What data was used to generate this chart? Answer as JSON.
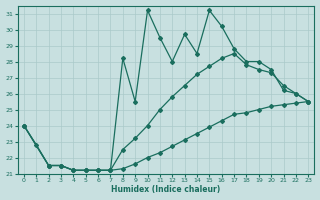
{
  "xlabel": "Humidex (Indice chaleur)",
  "xlim": [
    -0.5,
    23.5
  ],
  "ylim": [
    21,
    31.5
  ],
  "yticks": [
    21,
    22,
    23,
    24,
    25,
    26,
    27,
    28,
    29,
    30,
    31
  ],
  "xticks": [
    0,
    1,
    2,
    3,
    4,
    5,
    6,
    7,
    8,
    9,
    10,
    11,
    12,
    13,
    14,
    15,
    16,
    17,
    18,
    19,
    20,
    21,
    22,
    23
  ],
  "background_color": "#c8e0e0",
  "grid_color": "#aacaca",
  "line_color": "#1a6e5e",
  "line1_x": [
    0,
    1,
    2,
    3,
    4,
    5,
    6,
    7,
    8,
    9,
    10,
    11,
    12,
    13,
    14,
    15,
    16,
    17,
    18,
    19,
    20,
    21,
    22,
    23
  ],
  "line1_y": [
    24,
    22.8,
    21.5,
    21.5,
    21.2,
    21.2,
    21.2,
    21.2,
    28.2,
    25.5,
    31.2,
    29.5,
    28.0,
    29.7,
    28.5,
    31.2,
    30.2,
    28.8,
    28.0,
    28.0,
    27.5,
    26.2,
    26.0,
    25.5
  ],
  "line2_x": [
    0,
    2,
    3,
    4,
    5,
    6,
    7,
    8,
    9,
    10,
    11,
    12,
    13,
    14,
    15,
    16,
    17,
    18,
    19,
    20,
    21,
    22,
    23
  ],
  "line2_y": [
    24,
    21.5,
    21.5,
    21.2,
    21.2,
    21.2,
    21.2,
    22.5,
    23.2,
    24.0,
    25.0,
    25.8,
    26.5,
    27.2,
    27.7,
    28.2,
    28.5,
    27.8,
    27.5,
    27.3,
    26.5,
    26.0,
    25.5
  ],
  "line3_x": [
    0,
    2,
    3,
    4,
    5,
    6,
    7,
    8,
    9,
    10,
    11,
    12,
    13,
    14,
    15,
    16,
    17,
    18,
    19,
    20,
    21,
    22,
    23
  ],
  "line3_y": [
    24,
    21.5,
    21.5,
    21.2,
    21.2,
    21.2,
    21.2,
    21.3,
    21.6,
    22.0,
    22.3,
    22.7,
    23.1,
    23.5,
    23.9,
    24.3,
    24.7,
    24.8,
    25.0,
    25.2,
    25.3,
    25.4,
    25.5
  ]
}
